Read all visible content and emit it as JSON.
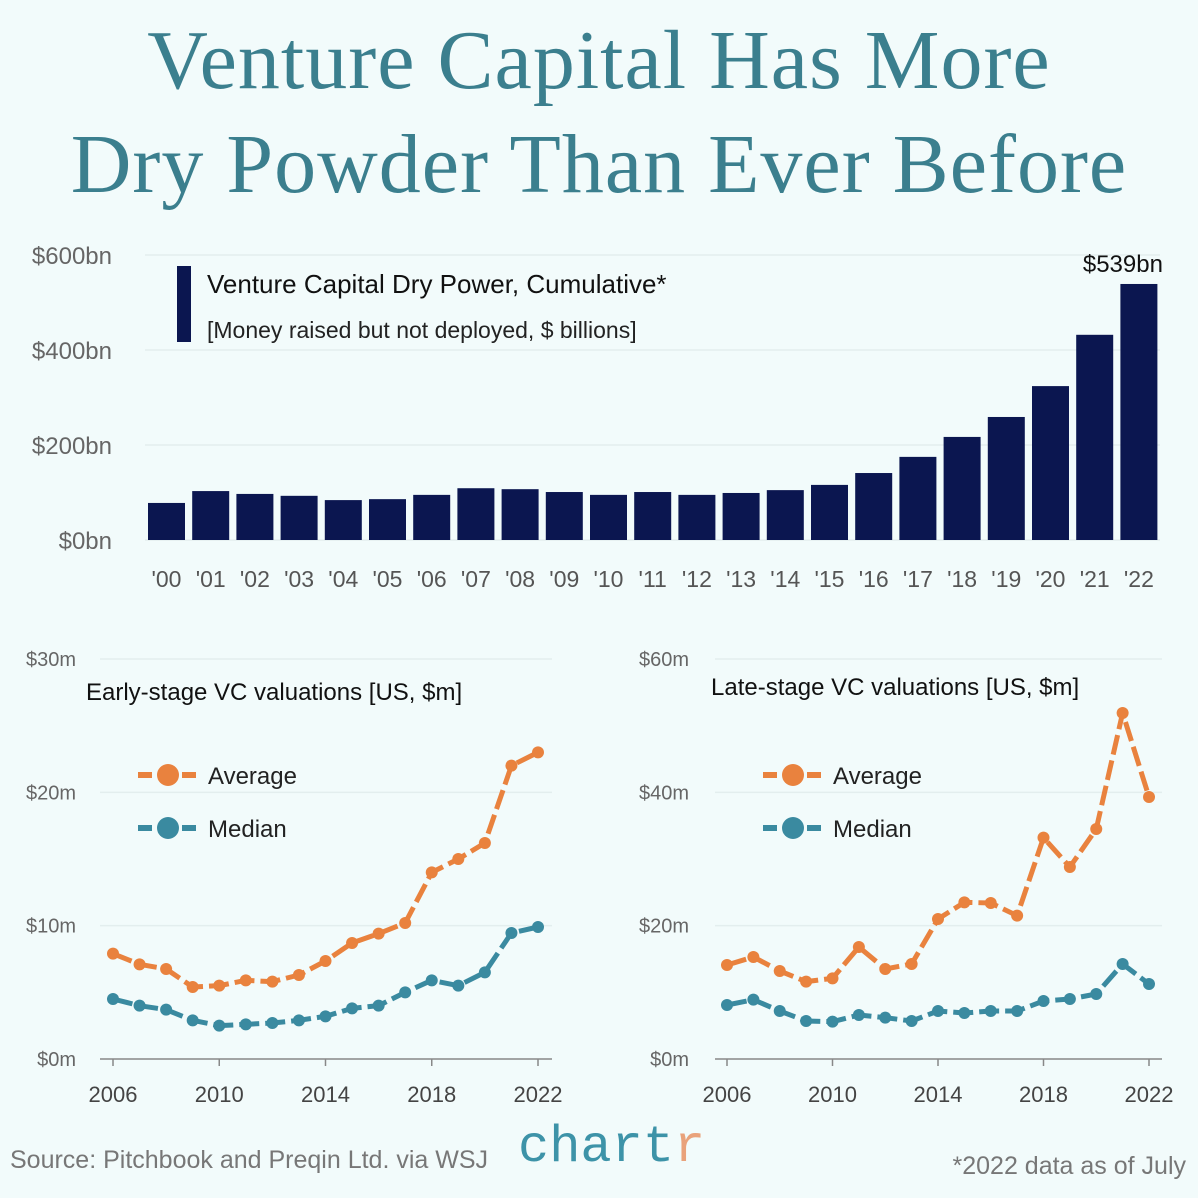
{
  "title_line1": "Venture Capital Has More",
  "title_line2": "Dry Powder Than Ever Before",
  "colors": {
    "bar": "#0b1650",
    "average": "#e9823e",
    "median": "#3a8aa0",
    "title": "#3b7f8e",
    "grid": "#e3eeee"
  },
  "chart_data": [
    {
      "type": "bar",
      "title": "Venture Capital Dry Power, Cumulative*",
      "subtitle": "[Money raised but not deployed, $ billions]",
      "categories": [
        "'00",
        "'01",
        "'02",
        "'03",
        "'04",
        "'05",
        "'06",
        "'07",
        "'08",
        "'09",
        "'10",
        "'11",
        "'12",
        "'13",
        "'14",
        "'15",
        "'16",
        "'17",
        "'18",
        "'19",
        "'20",
        "'21",
        "'22"
      ],
      "values": [
        78,
        103,
        97,
        93,
        84,
        86,
        95,
        109,
        107,
        101,
        95,
        101,
        95,
        99,
        105,
        116,
        141,
        175,
        217,
        259,
        324,
        432,
        539
      ],
      "ylim": [
        0,
        600
      ],
      "yticks": [
        0,
        200,
        400,
        600
      ],
      "ytick_labels": [
        "$0bn",
        "$200bn",
        "$400bn",
        "$600bn"
      ],
      "annotation": "$539bn",
      "legend": "top-left"
    },
    {
      "type": "line",
      "title": "Early-stage VC valuations [US, $m]",
      "x": [
        2006,
        2007,
        2008,
        2009,
        2010,
        2011,
        2012,
        2013,
        2014,
        2015,
        2016,
        2017,
        2018,
        2019,
        2020,
        2021,
        2022
      ],
      "series": [
        {
          "name": "Average",
          "values": [
            7.9,
            7.1,
            6.75,
            5.4,
            5.5,
            5.9,
            5.8,
            6.3,
            7.35,
            8.7,
            9.4,
            10.2,
            14.0,
            15.0,
            16.2,
            22.0,
            23.0
          ]
        },
        {
          "name": "Median",
          "values": [
            4.5,
            4.0,
            3.7,
            2.9,
            2.5,
            2.6,
            2.7,
            2.9,
            3.2,
            3.8,
            4.0,
            5.0,
            5.9,
            5.5,
            6.5,
            9.45,
            9.9
          ]
        }
      ],
      "ylim": [
        0,
        30
      ],
      "yticks": [
        0,
        10,
        20,
        30
      ],
      "ytick_labels": [
        "$0m",
        "$10m",
        "$20m",
        "$30m"
      ],
      "xticks": [
        2006,
        2010,
        2014,
        2018,
        2022
      ],
      "xtick_labels": [
        "2006",
        "2010",
        "2014",
        "2018",
        "2022"
      ]
    },
    {
      "type": "line",
      "title": "Late-stage VC valuations [US, $m]",
      "x": [
        2006,
        2007,
        2008,
        2009,
        2010,
        2011,
        2012,
        2013,
        2014,
        2015,
        2016,
        2017,
        2018,
        2019,
        2020,
        2021,
        2022
      ],
      "series": [
        {
          "name": "Average",
          "values": [
            14.1,
            15.3,
            13.2,
            11.6,
            12.1,
            16.8,
            13.5,
            14.25,
            21.0,
            23.5,
            23.4,
            21.5,
            33.2,
            28.8,
            34.5,
            51.9,
            39.3
          ]
        },
        {
          "name": "Median",
          "values": [
            8.1,
            8.9,
            7.2,
            5.7,
            5.6,
            6.6,
            6.2,
            5.7,
            7.2,
            6.9,
            7.2,
            7.2,
            8.7,
            9.0,
            9.75,
            14.25,
            11.25
          ]
        }
      ],
      "ylim": [
        0,
        60
      ],
      "yticks": [
        0,
        20,
        40,
        60
      ],
      "ytick_labels": [
        "$0m",
        "$20m",
        "$40m",
        "$60m"
      ],
      "xticks": [
        2006,
        2010,
        2014,
        2018,
        2022
      ],
      "xtick_labels": [
        "2006",
        "2010",
        "2014",
        "2018",
        "2022"
      ]
    }
  ],
  "footer": {
    "source": "Source: Pitchbook and Preqin Ltd. via WSJ",
    "logo_main": "chart",
    "logo_end": "r",
    "note": "*2022 data as of July"
  }
}
